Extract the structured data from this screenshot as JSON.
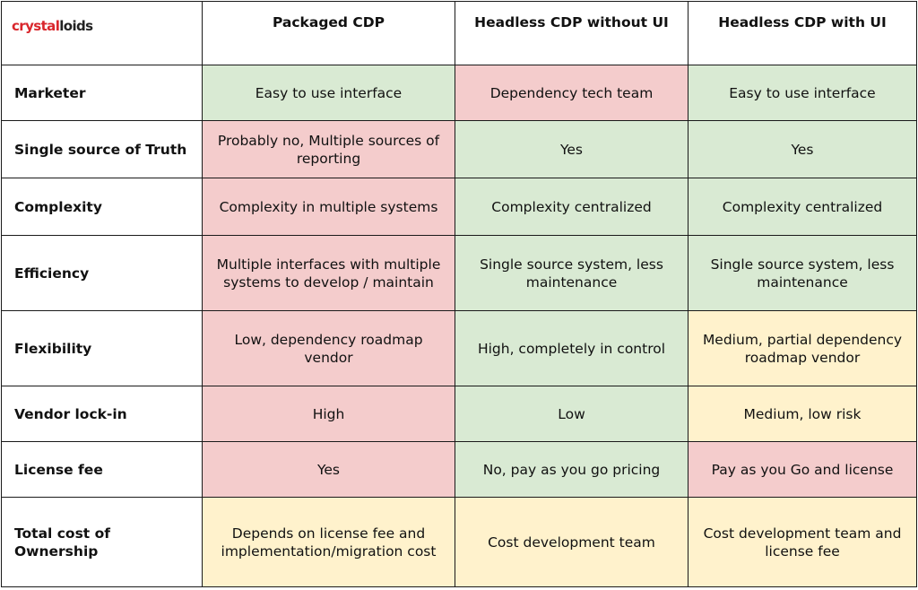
{
  "logo": {
    "part1": "crystal",
    "part2": "loids"
  },
  "columns": [
    "Packaged CDP",
    "Headless CDP without UI",
    "Headless CDP with UI"
  ],
  "colors": {
    "green": "#d9ead3",
    "red": "#f4cccc",
    "yellow": "#fff2cc"
  },
  "rows": [
    {
      "label": "Marketer",
      "cells": [
        {
          "text": "Easy to use interface",
          "rating": "green"
        },
        {
          "text": "Dependency tech team",
          "rating": "red"
        },
        {
          "text": "Easy to use interface",
          "rating": "green"
        }
      ]
    },
    {
      "label": "Single source of Truth",
      "cells": [
        {
          "text": "Probably no, Multiple sources of reporting",
          "rating": "red"
        },
        {
          "text": "Yes",
          "rating": "green"
        },
        {
          "text": "Yes",
          "rating": "green"
        }
      ]
    },
    {
      "label": "Complexity",
      "cells": [
        {
          "text": "Complexity in multiple systems",
          "rating": "red"
        },
        {
          "text": "Complexity centralized",
          "rating": "green"
        },
        {
          "text": "Complexity centralized",
          "rating": "green"
        }
      ]
    },
    {
      "label": "Efficiency",
      "cells": [
        {
          "text": "Multiple interfaces with multiple systems to develop / maintain",
          "rating": "red"
        },
        {
          "text": "Single source system, less maintenance",
          "rating": "green"
        },
        {
          "text": "Single source system, less maintenance",
          "rating": "green"
        }
      ]
    },
    {
      "label": "Flexibility",
      "cells": [
        {
          "text": "Low, dependency roadmap vendor",
          "rating": "red"
        },
        {
          "text": "High, completely in control",
          "rating": "green"
        },
        {
          "text": "Medium, partial dependency roadmap vendor",
          "rating": "yellow"
        }
      ]
    },
    {
      "label": "Vendor lock-in",
      "cells": [
        {
          "text": "High",
          "rating": "red"
        },
        {
          "text": "Low",
          "rating": "green"
        },
        {
          "text": "Medium, low risk",
          "rating": "yellow"
        }
      ]
    },
    {
      "label": "License fee",
      "cells": [
        {
          "text": "Yes",
          "rating": "red"
        },
        {
          "text": "No, pay as you go pricing",
          "rating": "green"
        },
        {
          "text": "Pay as you Go and license",
          "rating": "red"
        }
      ]
    },
    {
      "label": "Total cost of Ownership",
      "cells": [
        {
          "text": "Depends on license fee and implementation/migration cost",
          "rating": "yellow"
        },
        {
          "text": "Cost development team",
          "rating": "yellow"
        },
        {
          "text": "Cost development team and license fee",
          "rating": "yellow"
        }
      ]
    }
  ]
}
